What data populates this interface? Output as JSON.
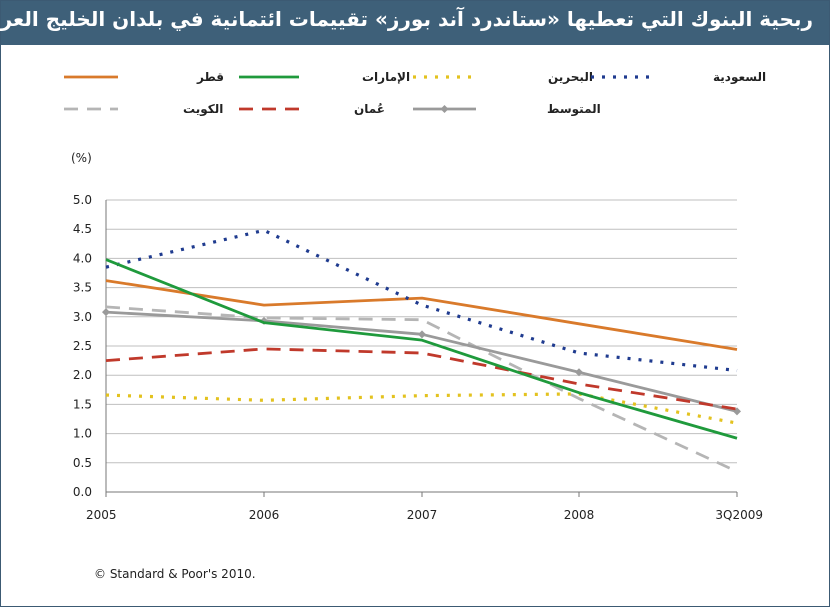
{
  "title": "ربحية البنوك التي تعطيها «ستاندرد آند بورز» تقييمات ائتمانية في بلدان الخليج العربي",
  "copyright": "© Standard & Poor's 2010.",
  "chart_data": {
    "type": "line",
    "ylabel": "(%)",
    "ylim": [
      0,
      5
    ],
    "y_ticks": [
      "0.0",
      "0.5",
      "1.0",
      "1.5",
      "2.0",
      "2.5",
      "3.0",
      "3.5",
      "4.0",
      "4.5",
      "5.0"
    ],
    "categories": [
      "2005",
      "2006",
      "2007",
      "2008",
      "3Q2009"
    ],
    "grid": "horizontal",
    "legend_position": "top",
    "series": [
      {
        "name": "قطر",
        "color": "#d97a2b",
        "dash": "solid",
        "values": [
          3.62,
          3.2,
          3.32,
          2.88,
          2.44
        ]
      },
      {
        "name": "الإمارات",
        "color": "#1f9a3c",
        "dash": "solid",
        "values": [
          3.98,
          2.9,
          2.6,
          1.7,
          0.92
        ]
      },
      {
        "name": "البحرين",
        "color": "#e3c21f",
        "dash": "dotted",
        "values": [
          1.66,
          1.57,
          1.65,
          1.68,
          1.18
        ]
      },
      {
        "name": "السعودية",
        "color": "#1f3b8f",
        "dash": "dotted",
        "values": [
          3.85,
          4.48,
          3.2,
          2.38,
          2.08
        ]
      },
      {
        "name": "الكويت",
        "color": "#b5b5b5",
        "dash": "dashed",
        "values": [
          3.17,
          2.98,
          2.95,
          1.6,
          0.35
        ]
      },
      {
        "name": "عُمان",
        "color": "#c0392b",
        "dash": "dashed",
        "values": [
          2.25,
          2.45,
          2.38,
          1.85,
          1.42
        ]
      },
      {
        "name": "المتوسط",
        "color": "#9a9a9a",
        "dash": "solid",
        "marker": "diamond",
        "values": [
          3.08,
          2.93,
          2.7,
          2.05,
          1.38
        ]
      }
    ]
  }
}
